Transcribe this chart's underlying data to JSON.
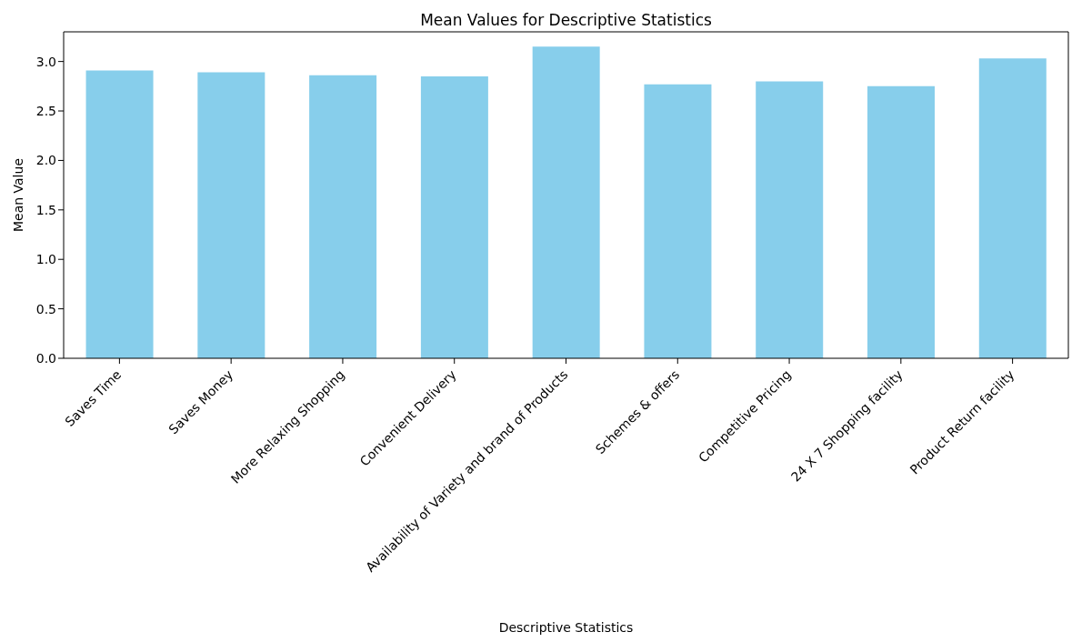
{
  "chart_data": {
    "type": "bar",
    "title": "Mean Values for Descriptive Statistics",
    "xlabel": "Descriptive Statistics",
    "ylabel": "Mean Value",
    "categories": [
      "Saves Time",
      "Saves Money",
      "More Relaxing Shopping",
      "Convenient Delivery",
      "Availability of Variety and brand of Products",
      "Schemes & offers",
      "Competitive Pricing",
      "24 X 7 Shopping facility",
      "Product Return facility"
    ],
    "values": [
      2.91,
      2.89,
      2.86,
      2.85,
      3.15,
      2.77,
      2.8,
      2.75,
      3.03
    ],
    "color": "#87ceeb",
    "ylim": [
      0,
      3.3
    ],
    "yticks": [
      {
        "value": 0,
        "label": "0.0"
      },
      {
        "value": 0.5,
        "label": "0.5"
      },
      {
        "value": 1,
        "label": "1.0"
      },
      {
        "value": 1.5,
        "label": "1.5"
      },
      {
        "value": 2,
        "label": "2.0"
      },
      {
        "value": 2.5,
        "label": "2.5"
      },
      {
        "value": 3,
        "label": "3.0"
      }
    ],
    "grid": false
  }
}
